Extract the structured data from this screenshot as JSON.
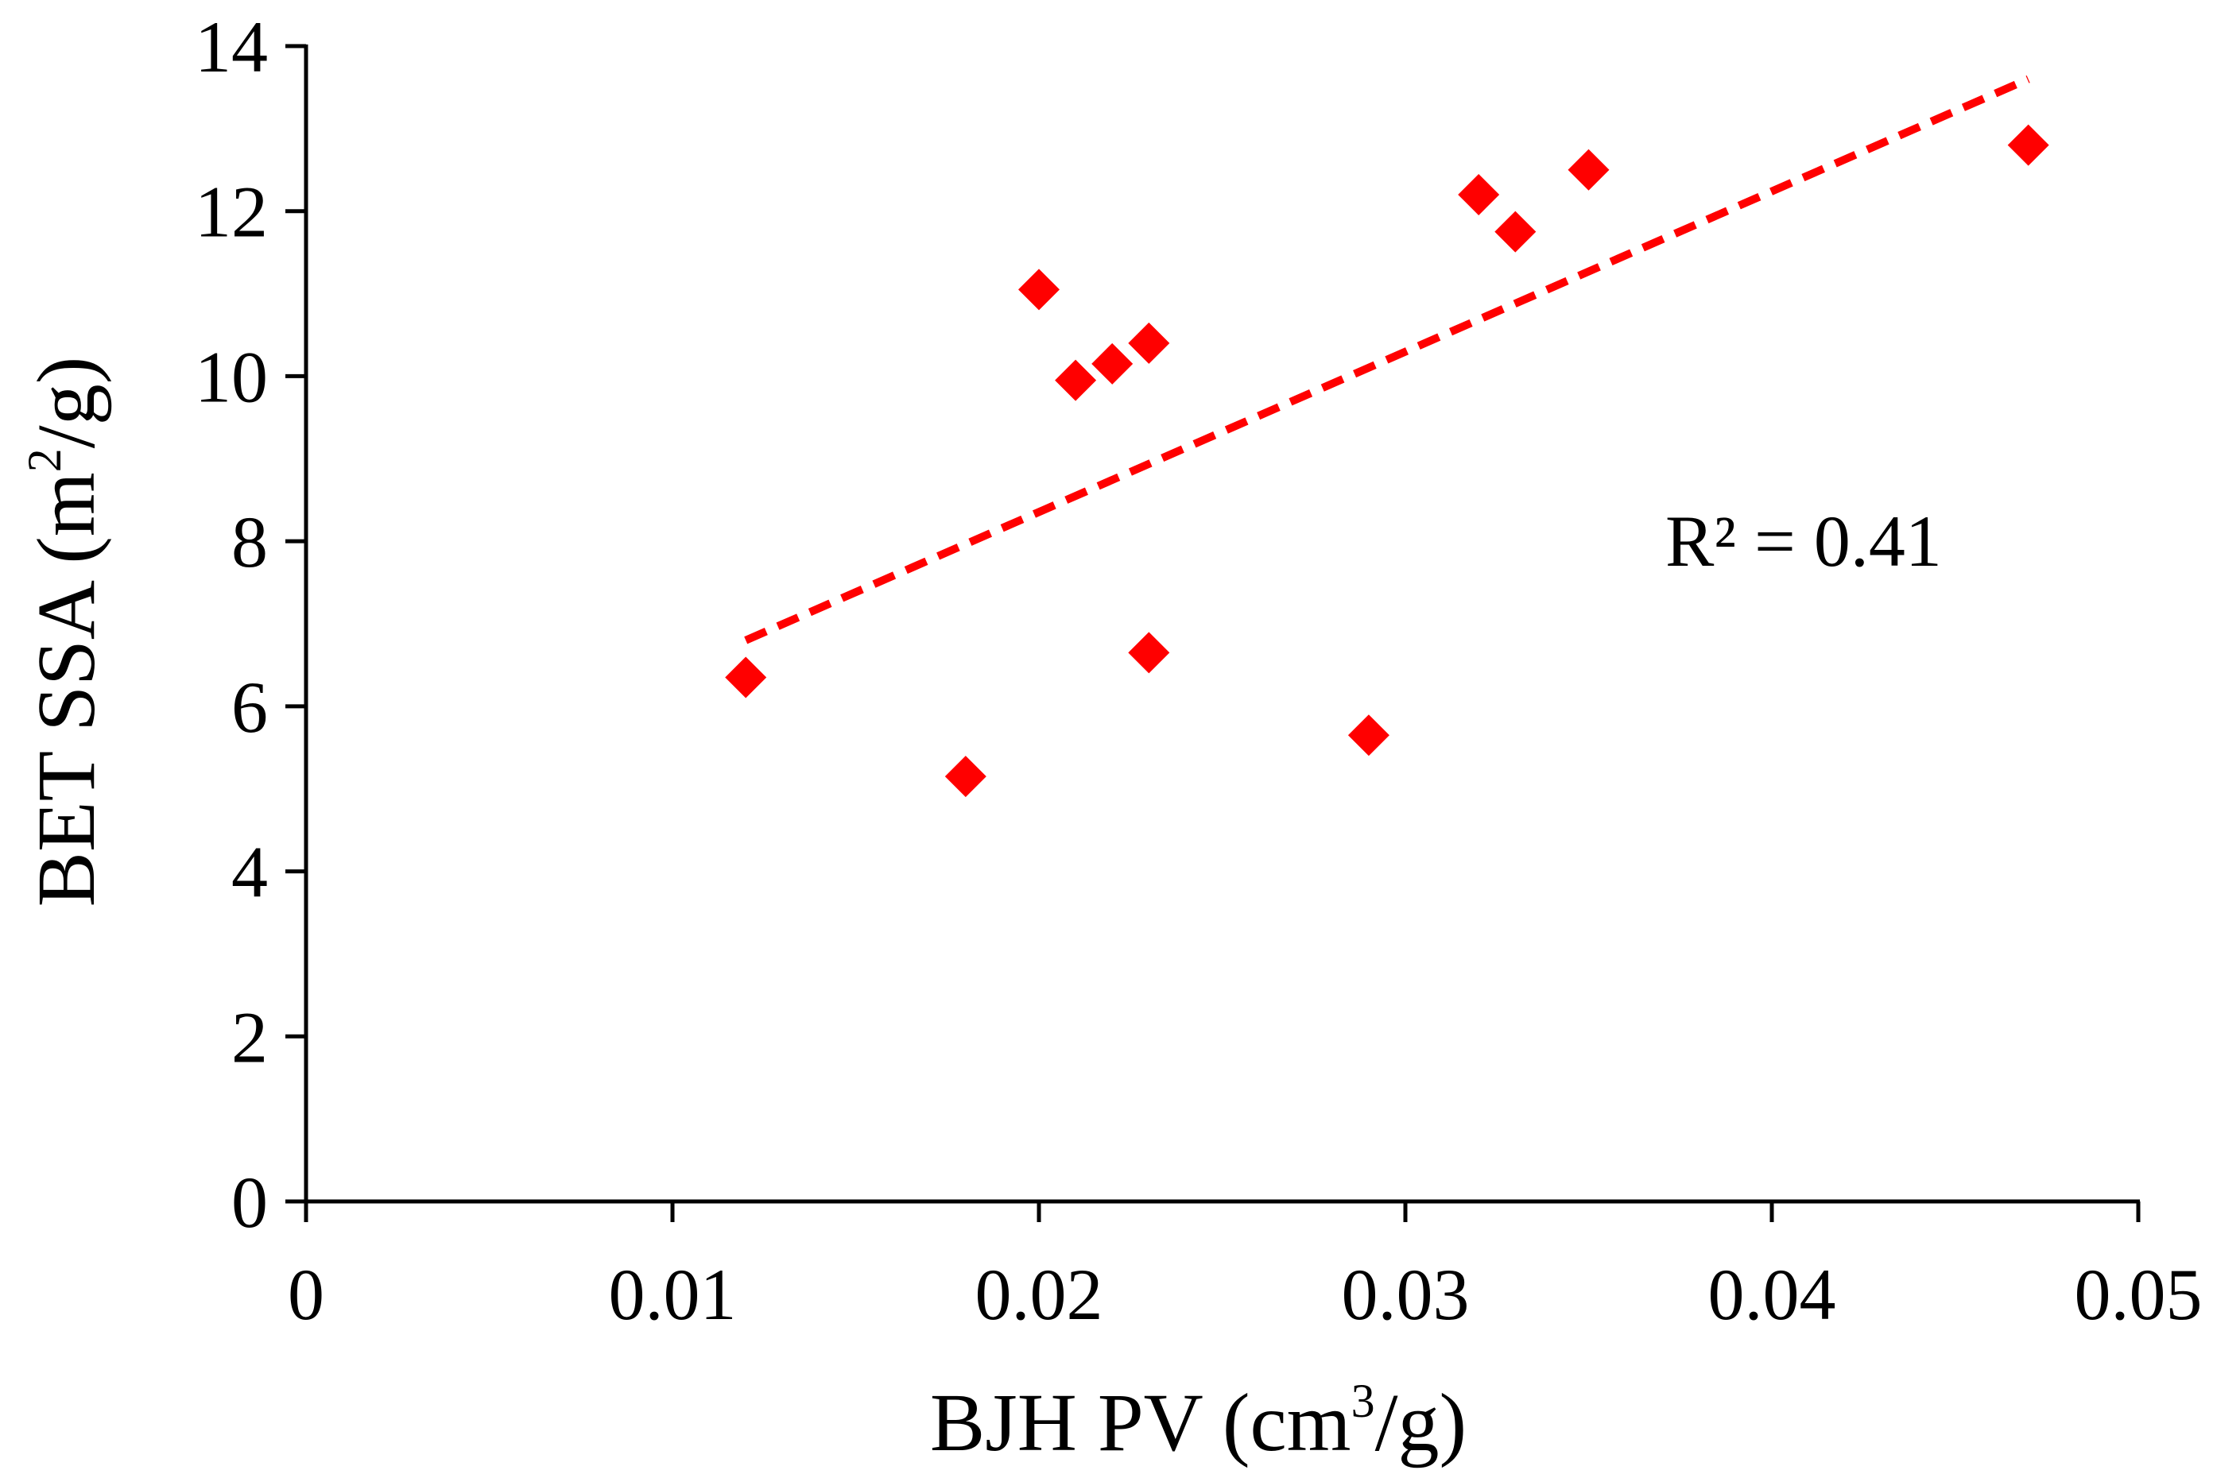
{
  "chart_data": {
    "type": "scatter",
    "title": "",
    "xlabel": "BJH PV (cm³/g)",
    "xlabel_parts": {
      "pre": "BJH PV (cm",
      "sup": "3",
      "post": "/g)"
    },
    "ylabel": "BET SSA (m²/g)",
    "ylabel_parts": {
      "pre": "BET SSA (m",
      "sup": "2",
      "post": "/g)"
    },
    "xlim": [
      0,
      0.05
    ],
    "ylim": [
      0,
      14
    ],
    "xticks": [
      0,
      0.01,
      0.02,
      0.03,
      0.04,
      0.05
    ],
    "xtick_labels": [
      "0",
      "0.01",
      "0.02",
      "0.03",
      "0.04",
      "0.05"
    ],
    "yticks": [
      0,
      2,
      4,
      6,
      8,
      10,
      12,
      14
    ],
    "ytick_labels": [
      "0",
      "2",
      "4",
      "6",
      "8",
      "10",
      "12",
      "14"
    ],
    "grid": false,
    "series": [
      {
        "name": "samples",
        "marker": "diamond",
        "color": "#ff0000",
        "points": [
          {
            "x": 0.012,
            "y": 6.35
          },
          {
            "x": 0.018,
            "y": 5.15
          },
          {
            "x": 0.02,
            "y": 11.05
          },
          {
            "x": 0.021,
            "y": 9.95
          },
          {
            "x": 0.022,
            "y": 10.15
          },
          {
            "x": 0.023,
            "y": 10.4
          },
          {
            "x": 0.023,
            "y": 6.65
          },
          {
            "x": 0.029,
            "y": 5.65
          },
          {
            "x": 0.032,
            "y": 12.2
          },
          {
            "x": 0.033,
            "y": 11.75
          },
          {
            "x": 0.035,
            "y": 12.5
          },
          {
            "x": 0.047,
            "y": 12.8
          }
        ]
      }
    ],
    "trendline": {
      "type": "linear",
      "style": "dashed",
      "color": "#ff0000",
      "x_start": 0.012,
      "y_start": 6.8,
      "x_end": 0.047,
      "y_end": 13.6
    },
    "annotation": "R² = 0.41"
  }
}
